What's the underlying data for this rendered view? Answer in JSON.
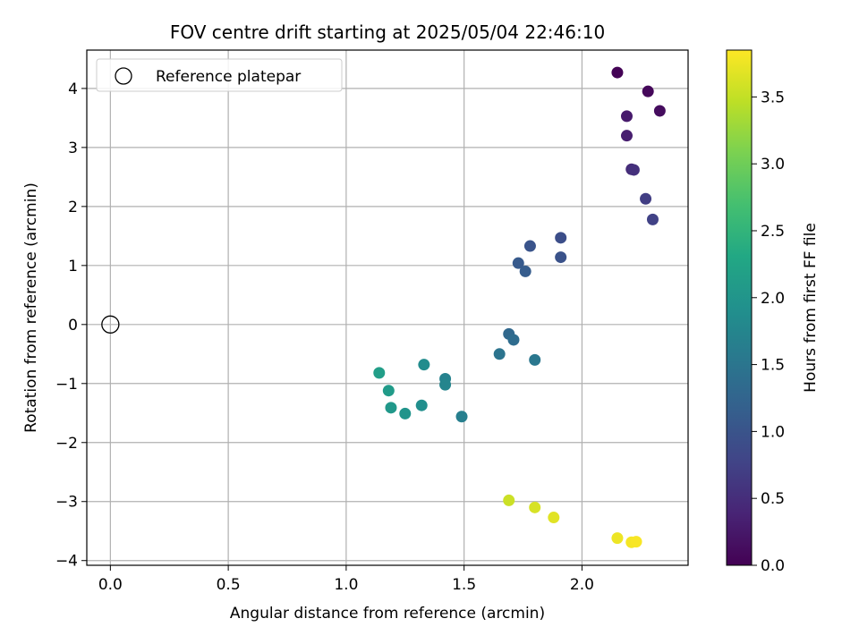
{
  "chart_data": {
    "type": "scatter",
    "title": "FOV centre drift starting at 2025/05/04 22:46:10",
    "xlabel": "Angular distance from reference (arcmin)",
    "ylabel": "Rotation from reference (arcmin)",
    "xlim": [
      -0.1,
      2.45
    ],
    "ylim": [
      -4.08,
      4.65
    ],
    "x_ticks": [
      0.0,
      0.5,
      1.0,
      1.5,
      2.0
    ],
    "x_tick_labels": [
      "0.0",
      "0.5",
      "1.0",
      "1.5",
      "2.0"
    ],
    "y_ticks": [
      -4,
      -3,
      -2,
      -1,
      0,
      1,
      2,
      3,
      4
    ],
    "y_tick_labels": [
      "−4",
      "−3",
      "−2",
      "−1",
      "0",
      "1",
      "2",
      "3",
      "4"
    ],
    "grid": true,
    "legend": {
      "position": "top-left",
      "entries": [
        {
          "label": "Reference platepar",
          "marker": "open-circle",
          "x": 0,
          "y": 0
        }
      ]
    },
    "colorbar": {
      "label": "Hours from first FF file",
      "colormap": "viridis",
      "range": [
        0.0,
        3.85
      ],
      "ticks": [
        0.0,
        0.5,
        1.0,
        1.5,
        2.0,
        2.5,
        3.0,
        3.5
      ],
      "tick_labels": [
        "0.0",
        "0.5",
        "1.0",
        "1.5",
        "2.0",
        "2.5",
        "3.0",
        "3.5"
      ]
    },
    "series": [
      {
        "points": [
          {
            "x": 2.15,
            "y": 4.27,
            "c": 0.02
          },
          {
            "x": 2.28,
            "y": 3.95,
            "c": 0.07
          },
          {
            "x": 2.33,
            "y": 3.62,
            "c": 0.12
          },
          {
            "x": 2.19,
            "y": 3.53,
            "c": 0.28
          },
          {
            "x": 2.19,
            "y": 3.2,
            "c": 0.33
          },
          {
            "x": 2.21,
            "y": 2.63,
            "c": 0.48
          },
          {
            "x": 2.22,
            "y": 2.62,
            "c": 0.53
          },
          {
            "x": 2.27,
            "y": 2.13,
            "c": 0.7
          },
          {
            "x": 2.3,
            "y": 1.78,
            "c": 0.75
          },
          {
            "x": 1.91,
            "y": 1.47,
            "c": 0.92
          },
          {
            "x": 1.91,
            "y": 1.14,
            "c": 0.98
          },
          {
            "x": 1.78,
            "y": 1.33,
            "c": 1.0
          },
          {
            "x": 1.73,
            "y": 1.04,
            "c": 1.08
          },
          {
            "x": 1.76,
            "y": 0.9,
            "c": 1.13
          },
          {
            "x": 1.69,
            "y": -0.16,
            "c": 1.3
          },
          {
            "x": 1.71,
            "y": -0.26,
            "c": 1.35
          },
          {
            "x": 1.65,
            "y": -0.5,
            "c": 1.47
          },
          {
            "x": 1.8,
            "y": -0.6,
            "c": 1.52
          },
          {
            "x": 1.49,
            "y": -1.56,
            "c": 1.65
          },
          {
            "x": 1.42,
            "y": -0.92,
            "c": 1.7
          },
          {
            "x": 1.42,
            "y": -1.02,
            "c": 1.75
          },
          {
            "x": 1.33,
            "y": -0.68,
            "c": 1.85
          },
          {
            "x": 1.32,
            "y": -1.37,
            "c": 1.9
          },
          {
            "x": 1.25,
            "y": -1.51,
            "c": 1.98
          },
          {
            "x": 1.19,
            "y": -1.41,
            "c": 2.05
          },
          {
            "x": 1.18,
            "y": -1.12,
            "c": 2.1
          },
          {
            "x": 1.14,
            "y": -0.82,
            "c": 2.15
          },
          {
            "x": 1.69,
            "y": -2.98,
            "c": 3.55
          },
          {
            "x": 1.8,
            "y": -3.1,
            "c": 3.62
          },
          {
            "x": 1.88,
            "y": -3.27,
            "c": 3.68
          },
          {
            "x": 2.15,
            "y": -3.62,
            "c": 3.75
          },
          {
            "x": 2.21,
            "y": -3.69,
            "c": 3.8
          },
          {
            "x": 2.23,
            "y": -3.68,
            "c": 3.82
          }
        ]
      }
    ]
  }
}
